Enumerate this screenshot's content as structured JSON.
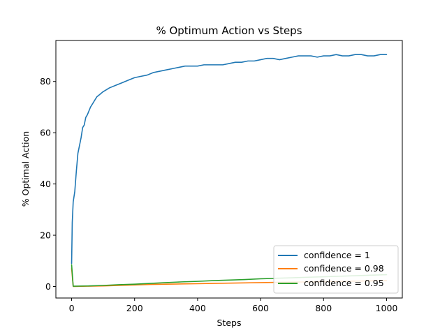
{
  "chart_data": {
    "type": "line",
    "title": "% Optimum Action vs Steps",
    "xlabel": "Steps",
    "ylabel": "% Optimal Action",
    "xlim": [
      -50,
      1050
    ],
    "ylim": [
      -4.5,
      96
    ],
    "xticks": [
      0,
      200,
      400,
      600,
      800,
      1000
    ],
    "yticks": [
      0,
      20,
      40,
      60,
      80
    ],
    "grid": false,
    "legend_position": "lower-right",
    "series": [
      {
        "name": "confidence = 1",
        "color": "#1f77b4",
        "x": [
          0,
          2,
          5,
          10,
          15,
          20,
          25,
          30,
          35,
          40,
          45,
          50,
          60,
          70,
          80,
          90,
          100,
          120,
          140,
          160,
          180,
          200,
          220,
          240,
          260,
          280,
          300,
          320,
          340,
          360,
          380,
          400,
          420,
          440,
          460,
          480,
          500,
          520,
          540,
          560,
          580,
          600,
          620,
          640,
          660,
          680,
          700,
          720,
          740,
          760,
          780,
          800,
          820,
          840,
          860,
          880,
          900,
          920,
          940,
          960,
          980,
          1000
        ],
        "y": [
          9,
          25,
          33,
          37,
          45,
          52,
          55,
          58,
          62,
          63,
          66,
          67,
          70,
          72,
          74,
          75,
          76,
          77.5,
          78.5,
          79.5,
          80.5,
          81.5,
          82,
          82.5,
          83.5,
          84,
          84.5,
          85,
          85.5,
          86,
          86,
          86,
          86.5,
          86.5,
          86.5,
          86.5,
          87,
          87.5,
          87.5,
          88,
          88,
          88.5,
          89,
          89,
          88.5,
          89,
          89.5,
          90,
          90,
          90,
          89.5,
          90,
          90,
          90.5,
          90,
          90,
          90.5,
          90.5,
          90,
          90,
          90.5,
          90.5
        ]
      },
      {
        "name": "confidence = 0.98",
        "color": "#ff7f0e",
        "x": [
          0,
          5,
          50,
          100,
          150,
          200,
          250,
          300,
          350,
          400,
          450,
          500,
          550,
          600,
          650,
          700,
          750,
          800,
          850,
          900,
          950,
          1000
        ],
        "y": [
          7,
          0,
          0.1,
          0.2,
          0.4,
          0.6,
          0.8,
          0.9,
          1.0,
          1.1,
          1.2,
          1.3,
          1.4,
          1.5,
          1.6,
          1.7,
          1.8,
          1.9,
          2.0,
          2.1,
          2.2,
          2.3
        ]
      },
      {
        "name": "confidence = 0.95",
        "color": "#2ca02c",
        "x": [
          0,
          5,
          50,
          100,
          150,
          200,
          250,
          300,
          350,
          400,
          450,
          500,
          550,
          600,
          650,
          700,
          750,
          800,
          850,
          900,
          950,
          1000
        ],
        "y": [
          8.5,
          0.1,
          0.2,
          0.4,
          0.7,
          0.9,
          1.2,
          1.5,
          1.8,
          2.0,
          2.3,
          2.5,
          2.7,
          3.0,
          3.2,
          3.4,
          3.6,
          3.8,
          4.0,
          4.2,
          4.4,
          4.6
        ]
      }
    ]
  }
}
